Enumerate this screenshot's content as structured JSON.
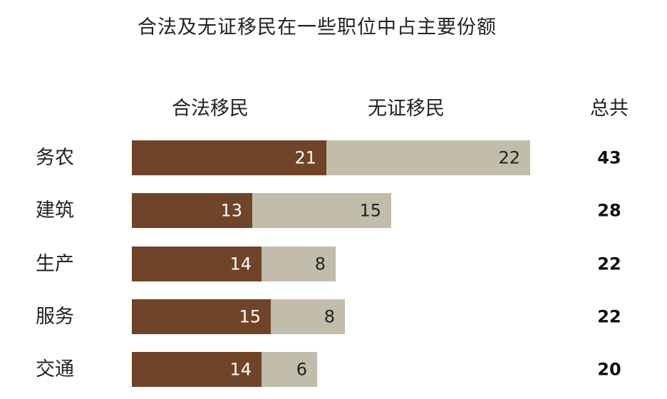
{
  "chart_data": {
    "type": "bar",
    "orientation": "horizontal",
    "stacked": true,
    "title": "合法及无证移民在一些职位中占主要份额",
    "categories": [
      "务农",
      "建筑",
      "生产",
      "服务",
      "交通"
    ],
    "series": [
      {
        "name": "合法移民",
        "values": [
          21,
          13,
          14,
          15,
          14
        ],
        "color": "#6f4428",
        "label_color": "#ffffff"
      },
      {
        "name": "无证移民",
        "values": [
          22,
          15,
          8,
          8,
          6
        ],
        "color": "#c2bcaa",
        "label_color": "#222222"
      }
    ],
    "totals_header": "总共",
    "totals": [
      43,
      28,
      22,
      22,
      20
    ],
    "xlim": [
      0,
      43
    ],
    "grid": false,
    "legend": "top column headers"
  }
}
